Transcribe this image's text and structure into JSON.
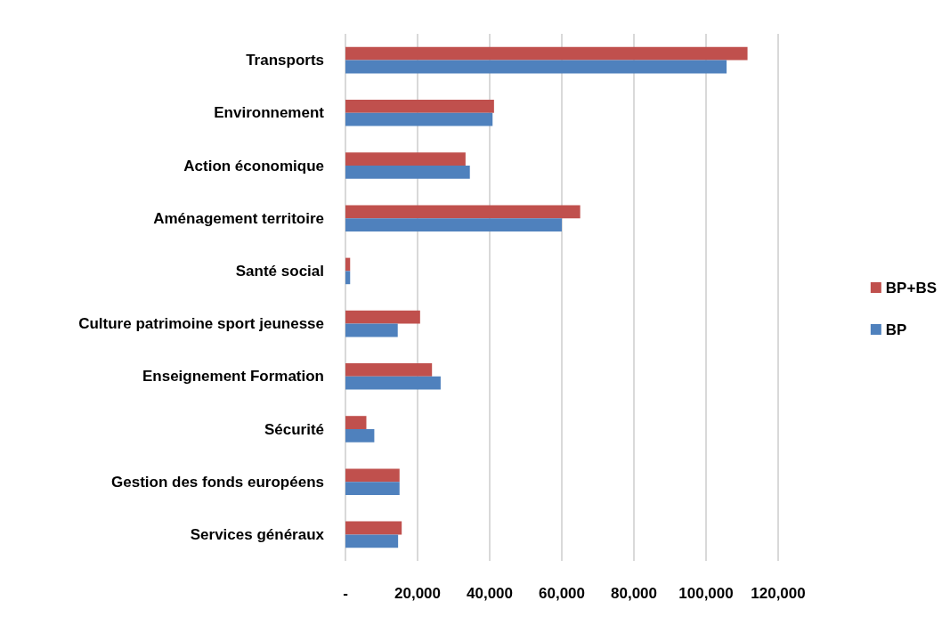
{
  "chart_data": {
    "type": "bar",
    "orientation": "horizontal",
    "categories": [
      "Transports",
      "Environnement",
      "Action économique",
      "Aménagement territoire",
      "Santé social",
      "Culture patrimoine sport jeunesse",
      "Enseignement Formation",
      "Sécurité",
      "Gestion des fonds européens",
      "Services généraux"
    ],
    "series": [
      {
        "name": "BP+BS",
        "color": "#c0504d",
        "values": [
          111500,
          41200,
          33300,
          65100,
          1300,
          20700,
          24000,
          5800,
          15000,
          15600
        ]
      },
      {
        "name": "BP",
        "color": "#4f81bd",
        "values": [
          105700,
          40800,
          34500,
          60000,
          1300,
          14500,
          26400,
          8000,
          15000,
          14600
        ]
      }
    ],
    "xlim": [
      0,
      120000
    ],
    "xticks": [
      {
        "value": 0,
        "label": "-"
      },
      {
        "value": 20000,
        "label": "20,000"
      },
      {
        "value": 40000,
        "label": "40,000"
      },
      {
        "value": 60000,
        "label": "60,000"
      },
      {
        "value": 80000,
        "label": "80,000"
      },
      {
        "value": 100000,
        "label": "100,000"
      },
      {
        "value": 120000,
        "label": "120,000"
      }
    ],
    "grid": "x",
    "legend": "right"
  }
}
